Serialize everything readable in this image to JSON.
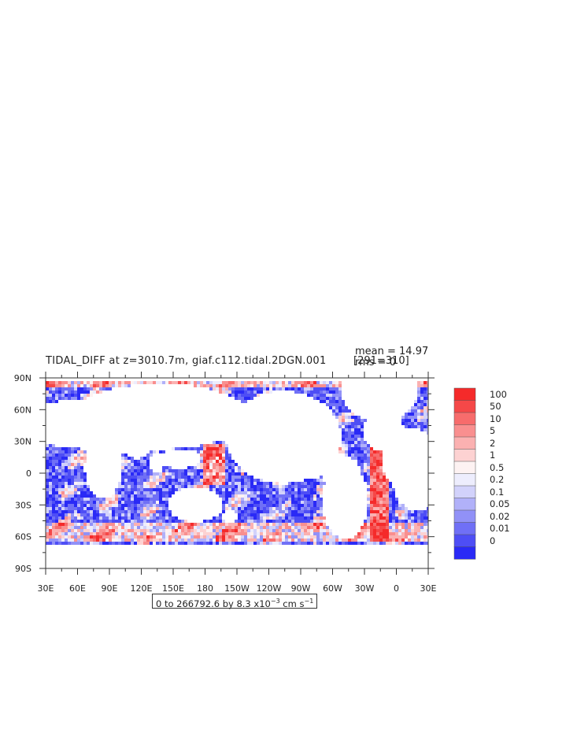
{
  "header": {
    "title": "TIDAL_DIFF at z=3010.7m, giaf.c112.tidal.2DGN.001",
    "range_label": "[291=310]",
    "mean_label": "mean = 14.97",
    "rms_label": "rms = 0"
  },
  "subtitle": {
    "prefix": "0 to 266792.6 by 8.3 x10",
    "exponent": "−3",
    "units": " cm s",
    "units_exponent": "−1"
  },
  "axes": {
    "lat_labels": [
      "90N",
      "60N",
      "30N",
      "0",
      "30S",
      "60S",
      "90S"
    ],
    "lon_labels": [
      "30E",
      "60E",
      "90E",
      "120E",
      "150E",
      "180",
      "150W",
      "120W",
      "90W",
      "60W",
      "30W",
      "0",
      "30E"
    ]
  },
  "colorbar": {
    "labels": [
      "100",
      "50",
      "10",
      "5",
      "2",
      "1",
      "0.5",
      "0.2",
      "0.1",
      "0.05",
      "0.02",
      "0.01",
      "0"
    ],
    "colors": [
      "#f52a2a",
      "#f54848",
      "#f76c6c",
      "#f98f8f",
      "#fbb1b1",
      "#fdd2d2",
      "#fdf2f2",
      "#ededfd",
      "#d2d2fb",
      "#b1b1f9",
      "#9191f7",
      "#7070f6",
      "#4e4ef5",
      "#2a2af6"
    ]
  }
}
